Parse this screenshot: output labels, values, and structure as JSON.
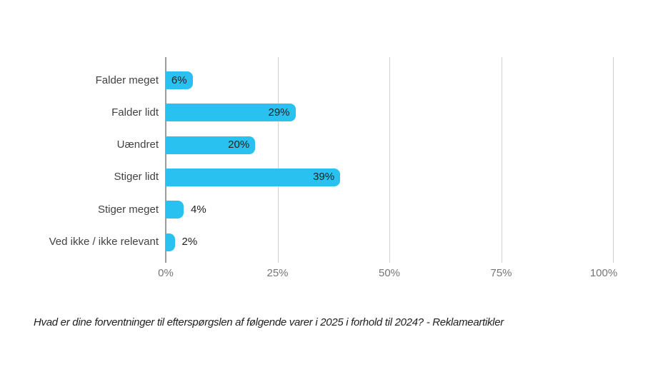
{
  "chart_data": {
    "type": "bar",
    "orientation": "horizontal",
    "title": "",
    "xlabel": "",
    "ylabel": "",
    "categories": [
      "Falder meget",
      "Falder lidt",
      "Uændret",
      "Stiger lidt",
      "Stiger meget",
      "Ved ikke / ikke relevant"
    ],
    "values": [
      6,
      29,
      20,
      39,
      4,
      2
    ],
    "value_labels": [
      "6%",
      "29%",
      "20%",
      "39%",
      "4%",
      "2%"
    ],
    "x_ticks": [
      0,
      25,
      50,
      75,
      100
    ],
    "x_tick_labels": [
      "0%",
      "25%",
      "50%",
      "75%",
      "100%"
    ],
    "xlim": [
      0,
      100
    ],
    "grid": true,
    "legend": false,
    "bar_color": "#29C2F0"
  },
  "caption": "Hvad er dine forventninger til efterspørgslen af følgende varer i 2025 i forhold til 2024? - Reklameartikler",
  "colors": {
    "background": "#FFFFFF",
    "bar": "#29C2F0",
    "axis_line": "#9A9A9A",
    "gridline": "#D2D2D2",
    "category_label": "#424242",
    "value_label": "#212121",
    "tick_label": "#757575",
    "caption": "#1F1F1F"
  }
}
